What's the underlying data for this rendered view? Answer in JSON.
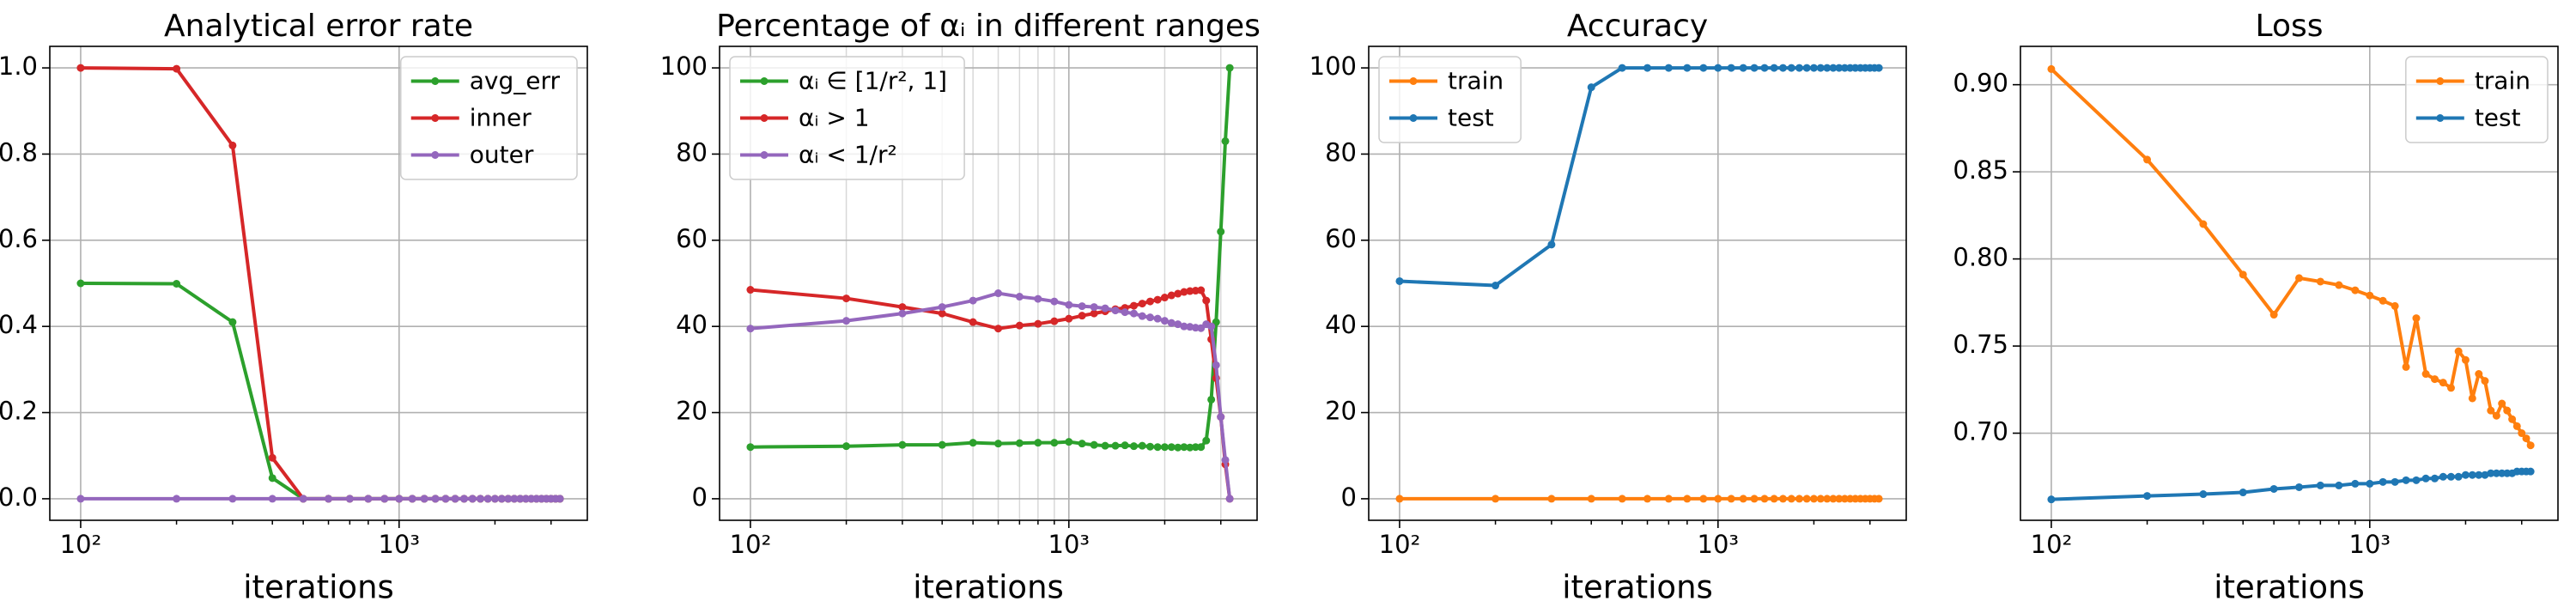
{
  "chart_data": [
    {
      "type": "line",
      "title": "Analytical error rate",
      "xlabel": "iterations",
      "log_x": true,
      "grid": true,
      "minor_grid": false,
      "legend": "upper right",
      "x": [
        100,
        200,
        300,
        400,
        500,
        600,
        700,
        800,
        900,
        1000,
        1100,
        1200,
        1300,
        1400,
        1500,
        1600,
        1700,
        1800,
        1900,
        2000,
        2100,
        2200,
        2300,
        2400,
        2500,
        2600,
        2700,
        2800,
        2900,
        3000,
        3100,
        3200
      ],
      "xlim": [
        80,
        3900
      ],
      "xticks": [
        {
          "value": 100,
          "label": "10²"
        },
        {
          "value": 1000,
          "label": "10³"
        }
      ],
      "xminorticks": [
        200,
        300,
        400,
        500,
        600,
        700,
        800,
        900,
        2000,
        3000
      ],
      "ylim": [
        -0.05,
        1.05
      ],
      "yticks": [
        {
          "value": 0,
          "label": "0.0"
        },
        0.2,
        0.4,
        0.6,
        0.8,
        {
          "value": 1,
          "label": "1.0"
        }
      ],
      "series": [
        {
          "name": "avg_err",
          "color": "#2ca02c",
          "values": [
            0.5,
            0.499,
            0.41,
            0.048,
            0,
            0,
            0,
            0,
            0,
            0,
            0,
            0,
            0,
            0,
            0,
            0,
            0,
            0,
            0,
            0,
            0,
            0,
            0,
            0,
            0,
            0,
            0,
            0,
            0,
            0,
            0,
            0
          ]
        },
        {
          "name": "inner",
          "color": "#d62728",
          "values": [
            1.0,
            0.998,
            0.82,
            0.095,
            0,
            0,
            0,
            0,
            0,
            0,
            0,
            0,
            0,
            0,
            0,
            0,
            0,
            0,
            0,
            0,
            0,
            0,
            0,
            0,
            0,
            0,
            0,
            0,
            0,
            0,
            0,
            0
          ]
        },
        {
          "name": "outer",
          "color": "#9467bd",
          "values": [
            0,
            0,
            0,
            0,
            0,
            0,
            0,
            0,
            0,
            0,
            0,
            0,
            0,
            0,
            0,
            0,
            0,
            0,
            0,
            0,
            0,
            0,
            0,
            0,
            0,
            0,
            0,
            0,
            0,
            0,
            0,
            0
          ]
        }
      ]
    },
    {
      "type": "line",
      "title": "Percentage of αᵢ in different ranges",
      "xlabel": "iterations",
      "log_x": true,
      "grid": true,
      "minor_grid": true,
      "legend": "upper left",
      "x": [
        100,
        200,
        300,
        400,
        500,
        600,
        700,
        800,
        900,
        1000,
        1100,
        1200,
        1300,
        1400,
        1500,
        1600,
        1700,
        1800,
        1900,
        2000,
        2100,
        2200,
        2300,
        2400,
        2500,
        2600,
        2700,
        2800,
        2900,
        3000,
        3100,
        3200
      ],
      "xlim": [
        80,
        3900
      ],
      "xticks": [
        {
          "value": 100,
          "label": "10²"
        },
        {
          "value": 1000,
          "label": "10³"
        }
      ],
      "xminorticks": [
        200,
        300,
        400,
        500,
        600,
        700,
        800,
        900,
        2000,
        3000
      ],
      "ylim": [
        -5,
        105
      ],
      "yticks": [
        0,
        20,
        40,
        60,
        80,
        100
      ],
      "series": [
        {
          "name": "αᵢ ∈ [1/r², 1]",
          "color": "#2ca02c",
          "values": [
            12,
            12.2,
            12.5,
            12.5,
            13,
            12.8,
            12.9,
            13,
            13,
            13.2,
            12.8,
            12.5,
            12.3,
            12.3,
            12.4,
            12.2,
            12.3,
            12.1,
            12,
            12,
            12,
            11.9,
            12,
            11.9,
            12,
            12,
            13.5,
            23,
            41,
            62,
            83,
            100
          ]
        },
        {
          "name": "αᵢ > 1",
          "color": "#d62728",
          "values": [
            48.5,
            46.5,
            44.5,
            43,
            41,
            39.5,
            40.2,
            40.6,
            41.2,
            41.8,
            42.5,
            43,
            43.5,
            44,
            44.3,
            44.8,
            45.3,
            45.8,
            46.2,
            46.7,
            47.2,
            47.6,
            48,
            48.2,
            48.3,
            48.4,
            46,
            37,
            28,
            19,
            8,
            0
          ]
        },
        {
          "name": "αᵢ < 1/r²",
          "color": "#9467bd",
          "values": [
            39.5,
            41.3,
            43,
            44.5,
            46,
            47.7,
            46.9,
            46.4,
            45.8,
            45,
            44.7,
            44.5,
            44.2,
            43.7,
            43.3,
            43,
            42.4,
            42.1,
            41.8,
            41.3,
            40.8,
            40.5,
            40,
            39.9,
            39.7,
            39.6,
            40.5,
            40,
            31,
            19,
            9,
            0
          ]
        }
      ]
    },
    {
      "type": "line",
      "title": "Accuracy",
      "xlabel": "iterations",
      "log_x": true,
      "grid": true,
      "minor_grid": false,
      "legend": "upper left",
      "x": [
        100,
        200,
        300,
        400,
        500,
        600,
        700,
        800,
        900,
        1000,
        1100,
        1200,
        1300,
        1400,
        1500,
        1600,
        1700,
        1800,
        1900,
        2000,
        2100,
        2200,
        2300,
        2400,
        2500,
        2600,
        2700,
        2800,
        2900,
        3000,
        3100,
        3200
      ],
      "xlim": [
        80,
        3900
      ],
      "xticks": [
        {
          "value": 100,
          "label": "10²"
        },
        {
          "value": 1000,
          "label": "10³"
        }
      ],
      "xminorticks": [
        200,
        300,
        400,
        500,
        600,
        700,
        800,
        900,
        2000,
        3000
      ],
      "ylim": [
        -5,
        105
      ],
      "yticks": [
        0,
        20,
        40,
        60,
        80,
        100
      ],
      "series": [
        {
          "name": "train",
          "color": "#ff7f0e",
          "values": [
            0,
            0,
            0,
            0,
            0,
            0,
            0,
            0,
            0,
            0,
            0,
            0,
            0,
            0,
            0,
            0,
            0,
            0,
            0,
            0,
            0,
            0,
            0,
            0,
            0,
            0,
            0,
            0,
            0,
            0,
            0,
            0
          ]
        },
        {
          "name": "test",
          "color": "#1f77b4",
          "values": [
            50.5,
            49.5,
            59,
            95.5,
            100,
            100,
            100,
            100,
            100,
            100,
            100,
            100,
            100,
            100,
            100,
            100,
            100,
            100,
            100,
            100,
            100,
            100,
            100,
            100,
            100,
            100,
            100,
            100,
            100,
            100,
            100,
            100
          ]
        }
      ]
    },
    {
      "type": "line",
      "title": "Loss",
      "xlabel": "iterations",
      "log_x": true,
      "grid": true,
      "minor_grid": false,
      "legend": "upper right",
      "x": [
        100,
        200,
        300,
        400,
        500,
        600,
        700,
        800,
        900,
        1000,
        1100,
        1200,
        1300,
        1400,
        1500,
        1600,
        1700,
        1800,
        1900,
        2000,
        2100,
        2200,
        2300,
        2400,
        2500,
        2600,
        2700,
        2800,
        2900,
        3000,
        3100,
        3200
      ],
      "xlim": [
        80,
        3900
      ],
      "xticks": [
        {
          "value": 100,
          "label": "10²"
        },
        {
          "value": 1000,
          "label": "10³"
        }
      ],
      "xminorticks": [
        200,
        300,
        400,
        500,
        600,
        700,
        800,
        900,
        2000,
        3000
      ],
      "ylim": [
        0.65,
        0.922
      ],
      "yticks": [
        {
          "value": 0.7,
          "label": "0.70"
        },
        0.75,
        {
          "value": 0.8,
          "label": "0.80"
        },
        0.85,
        {
          "value": 0.9,
          "label": "0.90"
        }
      ],
      "series": [
        {
          "name": "train",
          "color": "#ff7f0e",
          "values": [
            0.909,
            0.857,
            0.82,
            0.791,
            0.768,
            0.789,
            0.787,
            0.785,
            0.782,
            0.779,
            0.776,
            0.773,
            0.738,
            0.766,
            0.734,
            0.731,
            0.729,
            0.726,
            0.747,
            0.742,
            0.72,
            0.734,
            0.73,
            0.713,
            0.71,
            0.717,
            0.713,
            0.708,
            0.704,
            0.7,
            0.697,
            0.693
          ]
        },
        {
          "name": "test",
          "color": "#1f77b4",
          "values": [
            0.662,
            0.664,
            0.665,
            0.666,
            0.668,
            0.669,
            0.67,
            0.67,
            0.671,
            0.671,
            0.672,
            0.672,
            0.673,
            0.673,
            0.674,
            0.674,
            0.675,
            0.675,
            0.675,
            0.676,
            0.676,
            0.676,
            0.676,
            0.677,
            0.677,
            0.677,
            0.677,
            0.677,
            0.678,
            0.678,
            0.678,
            0.678
          ]
        }
      ]
    }
  ]
}
